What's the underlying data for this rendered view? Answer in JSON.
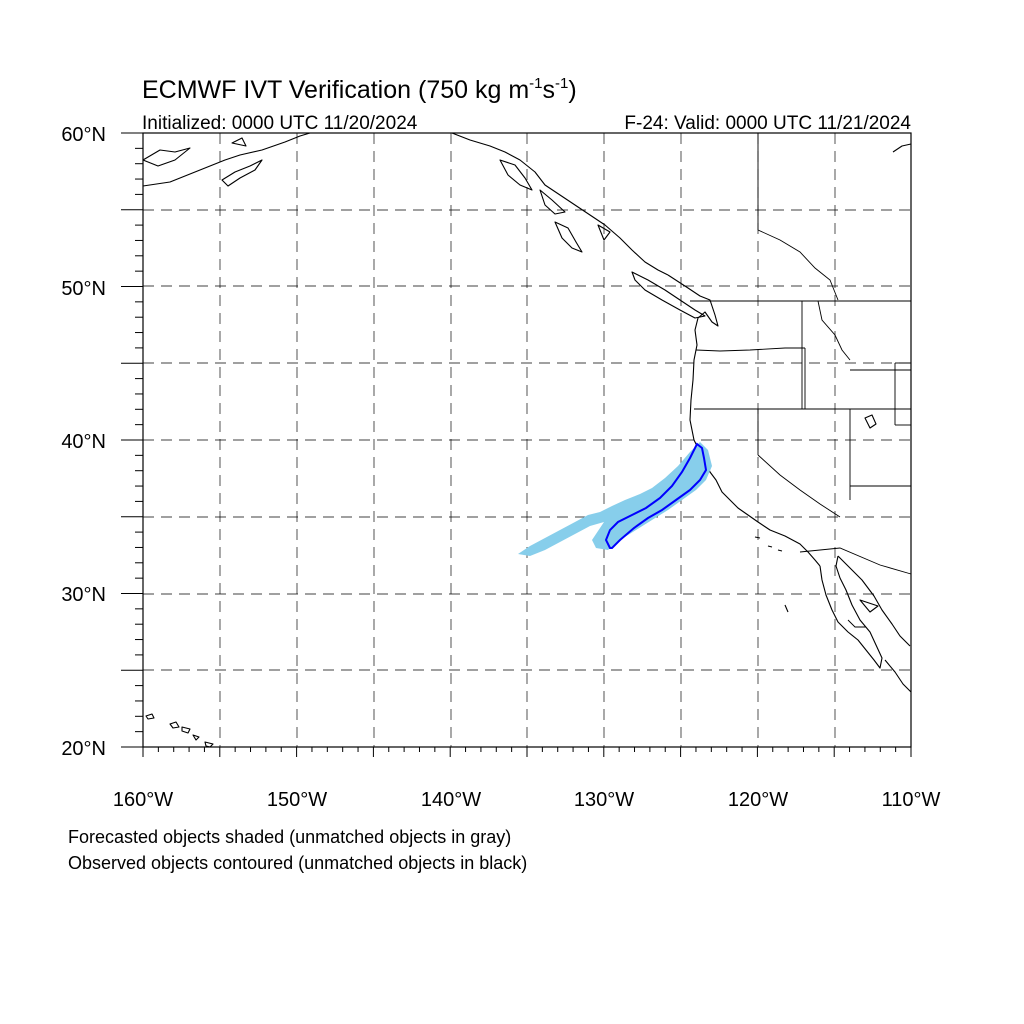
{
  "title_main": "ECMWF IVT Verification (750 kg m",
  "title_exp1": "-1",
  "title_mid": "s",
  "title_exp2": "-1",
  "title_end": ")",
  "initialized": "Initialized: 0000 UTC 11/20/2024",
  "valid": "F-24: Valid: 0000 UTC 11/21/2024",
  "lat_labels": [
    "60°N",
    "50°N",
    "40°N",
    "30°N",
    "20°N"
  ],
  "lon_labels": [
    "160°W",
    "150°W",
    "140°W",
    "130°W",
    "120°W",
    "110°W"
  ],
  "legend_line1": "Forecasted objects shaded (unmatched objects in gray)",
  "legend_line2": "Observed objects contoured (unmatched objects in black)",
  "colors": {
    "forecast_fill": "#87ceeb",
    "observed_contour": "#0000ff",
    "grid": "#000000"
  }
}
